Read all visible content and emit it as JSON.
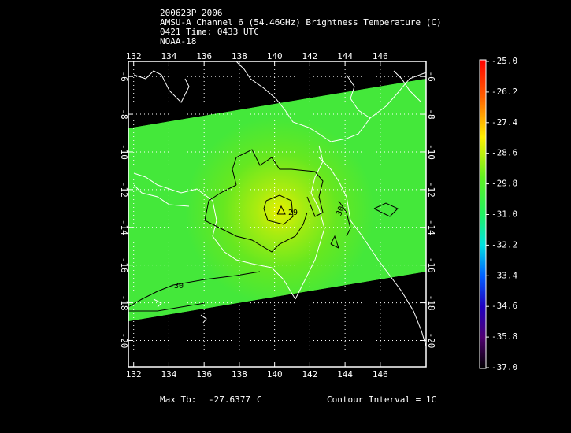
{
  "header": {
    "lines": [
      "200623P 2006",
      "AMSU-A Channel 6 (54.46GHz) Brightness Temperature (C)",
      "0421 Time: 0433 UTC",
      "NOAA-18"
    ]
  },
  "map": {
    "lonlim": [
      131.7,
      148.6
    ],
    "latlim": [
      -5.2,
      -21.4
    ],
    "lon_ticks": [
      132,
      134,
      136,
      138,
      140,
      142,
      144,
      146
    ],
    "lat_ticks": [
      -6,
      -8,
      -10,
      -12,
      -14,
      -16,
      -18,
      -20
    ],
    "contour_labels": [
      "29",
      "30",
      "-30"
    ]
  },
  "colorbar": {
    "lim": [
      -25,
      -37
    ],
    "ticks": [
      {
        "value": -25,
        "label": "-25.0"
      },
      {
        "value": -26.2,
        "label": "-26.2"
      },
      {
        "value": -27.4,
        "label": "-27.4"
      },
      {
        "value": -28.6,
        "label": "-28.6"
      },
      {
        "value": -29.8,
        "label": "-29.8"
      },
      {
        "value": -31,
        "label": "-31.0"
      },
      {
        "value": -32.2,
        "label": "-32.2"
      },
      {
        "value": -33.4,
        "label": "-33.4"
      },
      {
        "value": -34.6,
        "label": "-34.6"
      },
      {
        "value": -35.8,
        "label": "-35.8"
      },
      {
        "value": -37,
        "label": "-37.0"
      }
    ]
  },
  "footer": {
    "max_label": "Max Tb:",
    "max_value": "-27.6377",
    "unit": "C",
    "contour_interval": "Contour Interval = 1C"
  }
}
